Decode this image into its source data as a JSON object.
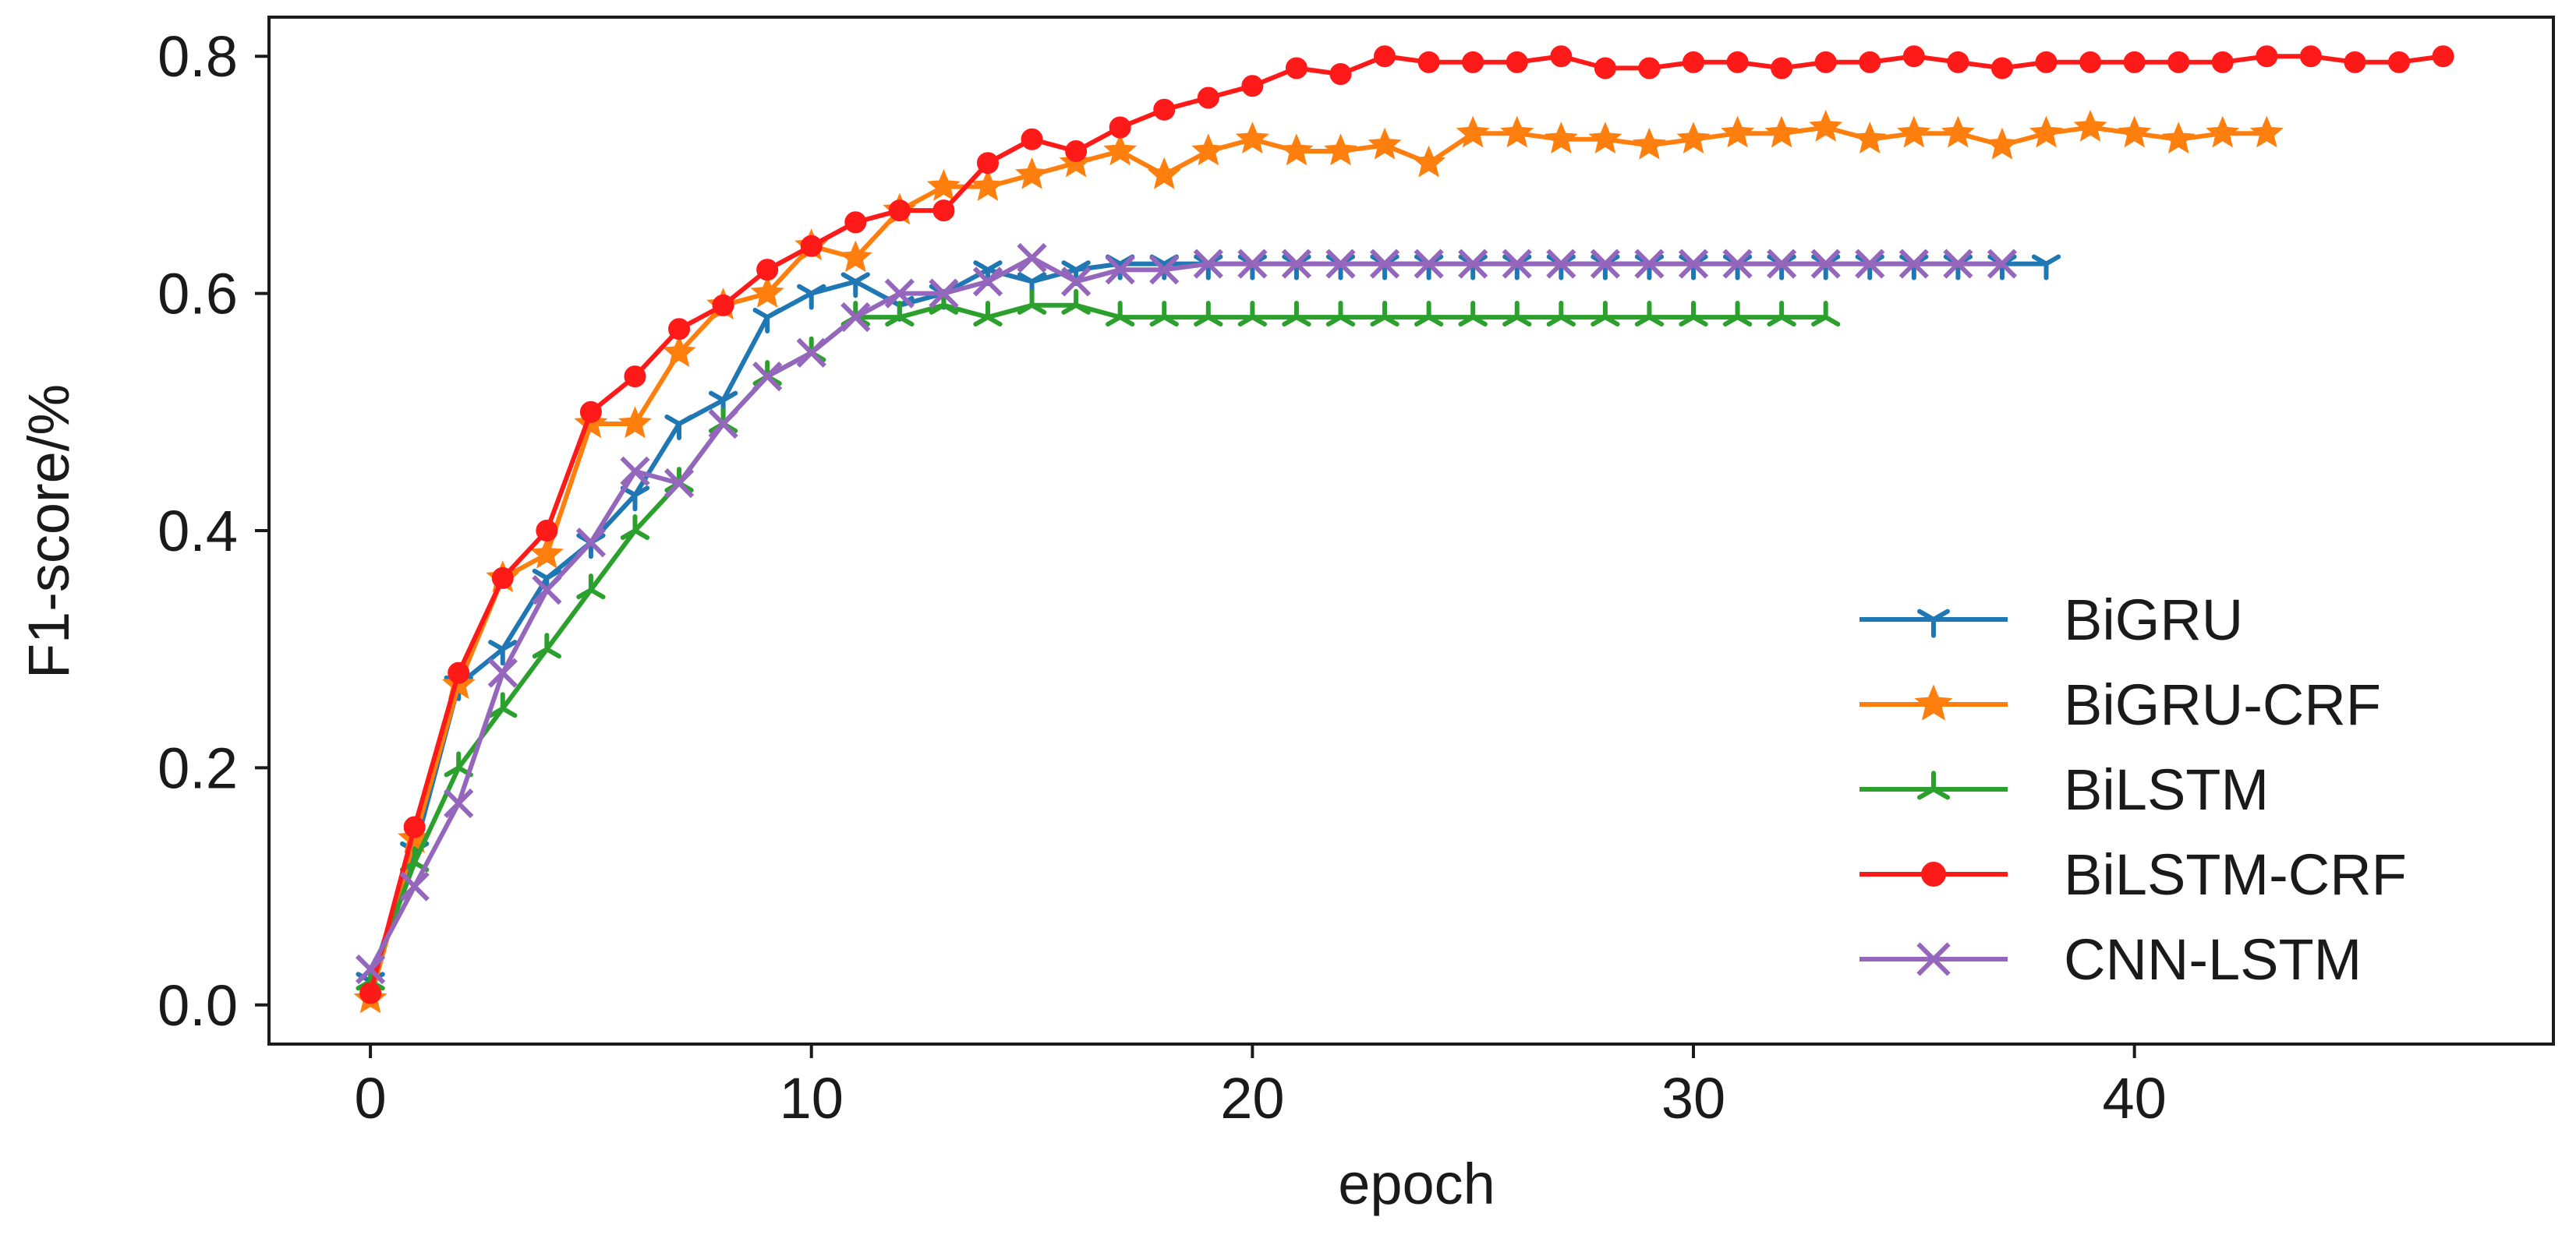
{
  "chart_data": {
    "type": "line",
    "title": "",
    "xlabel": "epoch",
    "ylabel": "F1-score/%",
    "xlim": [
      -2.3,
      49.5
    ],
    "ylim": [
      -0.033,
      0.833
    ],
    "xticks": [
      0,
      10,
      20,
      30,
      40
    ],
    "yticks": [
      0.0,
      0.2,
      0.4,
      0.6,
      0.8
    ],
    "xtick_labels": [
      "0",
      "10",
      "20",
      "30",
      "40"
    ],
    "ytick_labels": [
      "0.0",
      "0.2",
      "0.4",
      "0.6",
      "0.8"
    ],
    "legend_position": "lower-right",
    "series": [
      {
        "name": "BiGRU",
        "color": "#1f77b4",
        "marker": "tri-down",
        "x": [
          0,
          1,
          2,
          3,
          4,
          5,
          6,
          7,
          8,
          9,
          10,
          11,
          12,
          13,
          14,
          15,
          16,
          17,
          18,
          19,
          20,
          21,
          22,
          23,
          24,
          25,
          26,
          27,
          28,
          29,
          30,
          31,
          32,
          33,
          34,
          35,
          36,
          37,
          38
        ],
        "values": [
          0.02,
          0.13,
          0.27,
          0.3,
          0.36,
          0.39,
          0.43,
          0.49,
          0.51,
          0.58,
          0.6,
          0.61,
          0.59,
          0.6,
          0.62,
          0.61,
          0.62,
          0.625,
          0.625,
          0.625,
          0.625,
          0.625,
          0.625,
          0.625,
          0.625,
          0.625,
          0.625,
          0.625,
          0.625,
          0.625,
          0.625,
          0.625,
          0.625,
          0.625,
          0.625,
          0.625,
          0.625,
          0.625,
          0.625
        ]
      },
      {
        "name": "BiGRU-CRF",
        "color": "#ff7f0e",
        "marker": "star",
        "x": [
          0,
          1,
          2,
          3,
          4,
          5,
          6,
          7,
          8,
          9,
          10,
          11,
          12,
          13,
          14,
          15,
          16,
          17,
          18,
          19,
          20,
          21,
          22,
          23,
          24,
          25,
          26,
          27,
          28,
          29,
          30,
          31,
          32,
          33,
          34,
          35,
          36,
          37,
          38,
          39,
          40,
          41,
          42,
          43
        ],
        "values": [
          0.005,
          0.14,
          0.27,
          0.36,
          0.38,
          0.49,
          0.49,
          0.55,
          0.59,
          0.6,
          0.64,
          0.63,
          0.67,
          0.69,
          0.69,
          0.7,
          0.71,
          0.72,
          0.7,
          0.72,
          0.73,
          0.72,
          0.72,
          0.725,
          0.71,
          0.735,
          0.735,
          0.73,
          0.73,
          0.725,
          0.73,
          0.735,
          0.735,
          0.74,
          0.73,
          0.735,
          0.735,
          0.725,
          0.735,
          0.74,
          0.735,
          0.73,
          0.735,
          0.735
        ]
      },
      {
        "name": "BiLSTM",
        "color": "#2ca02c",
        "marker": "tri-up",
        "x": [
          0,
          1,
          2,
          3,
          4,
          5,
          6,
          7,
          8,
          9,
          10,
          11,
          12,
          13,
          14,
          15,
          16,
          17,
          18,
          19,
          20,
          21,
          22,
          23,
          24,
          25,
          26,
          27,
          28,
          29,
          30,
          31,
          32,
          33
        ],
        "values": [
          0.02,
          0.12,
          0.2,
          0.25,
          0.3,
          0.35,
          0.4,
          0.44,
          0.49,
          0.53,
          0.55,
          0.58,
          0.58,
          0.59,
          0.58,
          0.59,
          0.59,
          0.58,
          0.58,
          0.58,
          0.58,
          0.58,
          0.58,
          0.58,
          0.58,
          0.58,
          0.58,
          0.58,
          0.58,
          0.58,
          0.58,
          0.58,
          0.58,
          0.58
        ]
      },
      {
        "name": "BiLSTM-CRF",
        "color": "#ff1a1a",
        "marker": "circle",
        "x": [
          0,
          1,
          2,
          3,
          4,
          5,
          6,
          7,
          8,
          9,
          10,
          11,
          12,
          13,
          14,
          15,
          16,
          17,
          18,
          19,
          20,
          21,
          22,
          23,
          24,
          25,
          26,
          27,
          28,
          29,
          30,
          31,
          32,
          33,
          34,
          35,
          36,
          37,
          38,
          39,
          40,
          41,
          42,
          43,
          44,
          45,
          46,
          47
        ],
        "values": [
          0.01,
          0.15,
          0.28,
          0.36,
          0.4,
          0.5,
          0.53,
          0.57,
          0.59,
          0.62,
          0.64,
          0.66,
          0.67,
          0.67,
          0.71,
          0.73,
          0.72,
          0.74,
          0.755,
          0.765,
          0.775,
          0.79,
          0.785,
          0.8,
          0.795,
          0.795,
          0.795,
          0.8,
          0.79,
          0.79,
          0.795,
          0.795,
          0.79,
          0.795,
          0.795,
          0.8,
          0.795,
          0.79,
          0.795,
          0.795,
          0.795,
          0.795,
          0.795,
          0.8,
          0.8,
          0.795,
          0.795,
          0.8
        ]
      },
      {
        "name": "CNN-LSTM",
        "color": "#9467bd",
        "marker": "x",
        "x": [
          0,
          1,
          2,
          3,
          4,
          5,
          6,
          7,
          8,
          9,
          10,
          11,
          12,
          13,
          14,
          15,
          16,
          17,
          18,
          19,
          20,
          21,
          22,
          23,
          24,
          25,
          26,
          27,
          28,
          29,
          30,
          31,
          32,
          33,
          34,
          35,
          36,
          37
        ],
        "values": [
          0.03,
          0.1,
          0.17,
          0.28,
          0.35,
          0.39,
          0.45,
          0.44,
          0.49,
          0.53,
          0.55,
          0.58,
          0.6,
          0.6,
          0.61,
          0.63,
          0.61,
          0.62,
          0.62,
          0.625,
          0.625,
          0.625,
          0.625,
          0.625,
          0.625,
          0.625,
          0.625,
          0.625,
          0.625,
          0.625,
          0.625,
          0.625,
          0.625,
          0.625,
          0.625,
          0.625,
          0.625,
          0.625
        ]
      }
    ]
  }
}
